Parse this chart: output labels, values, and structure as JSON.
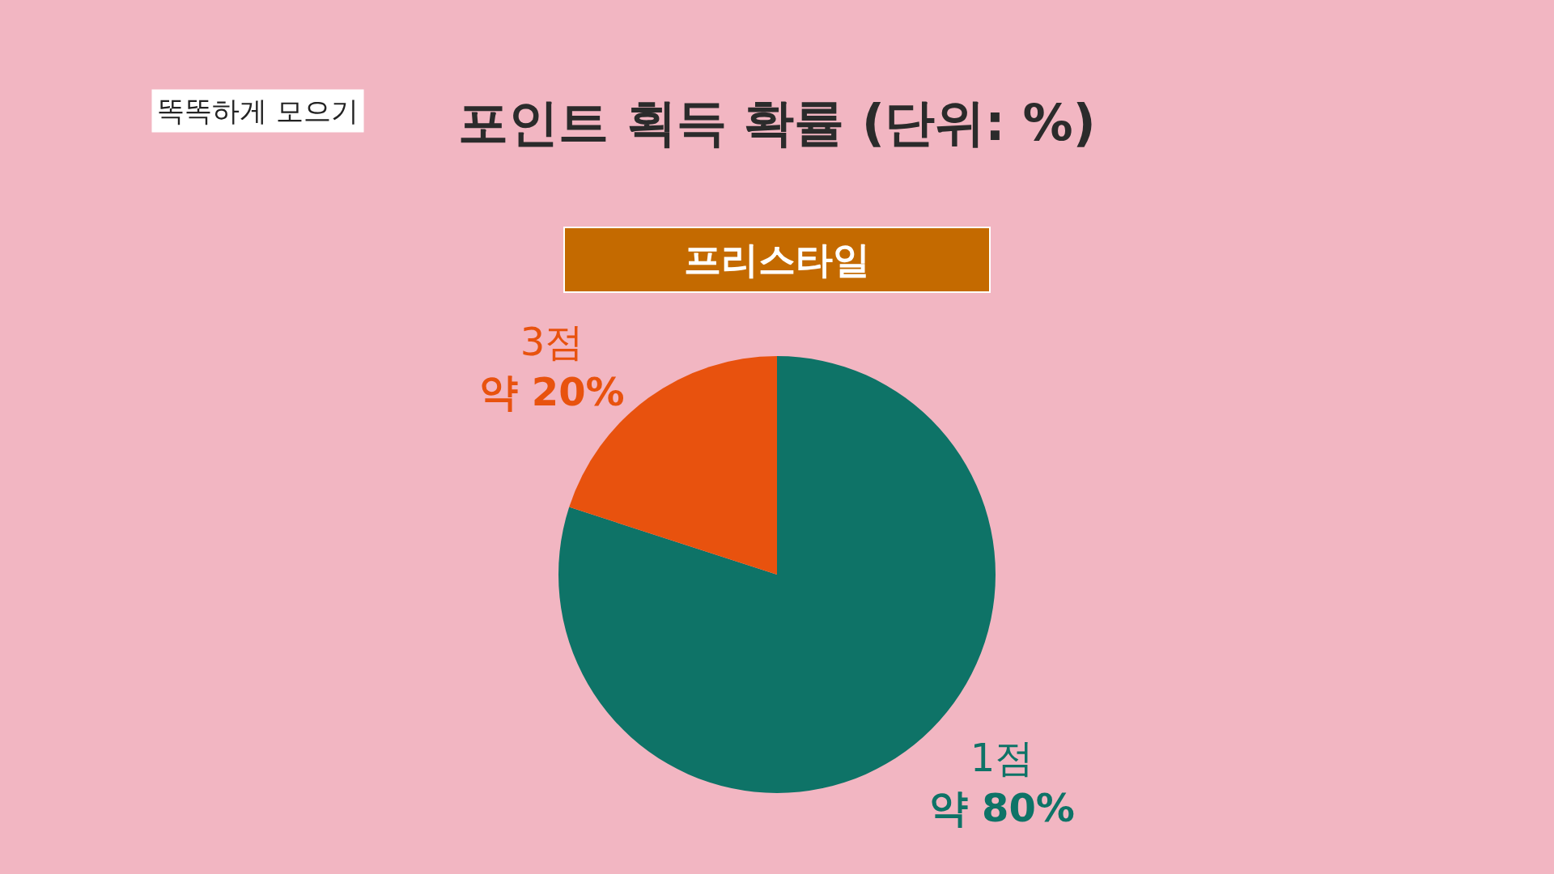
{
  "chart_data": {
    "type": "pie",
    "title": "포인트 획득 확률 (단위: %)",
    "subtitle": "프리스타일",
    "annotations": [
      "똑똑하게 모으기"
    ],
    "categories": [
      "1점",
      "3점"
    ],
    "values": [
      80,
      20
    ],
    "colors": [
      "#0e7367",
      "#e8520e"
    ],
    "value_labels": [
      "약 80%",
      "약 20%"
    ],
    "legend": false
  }
}
